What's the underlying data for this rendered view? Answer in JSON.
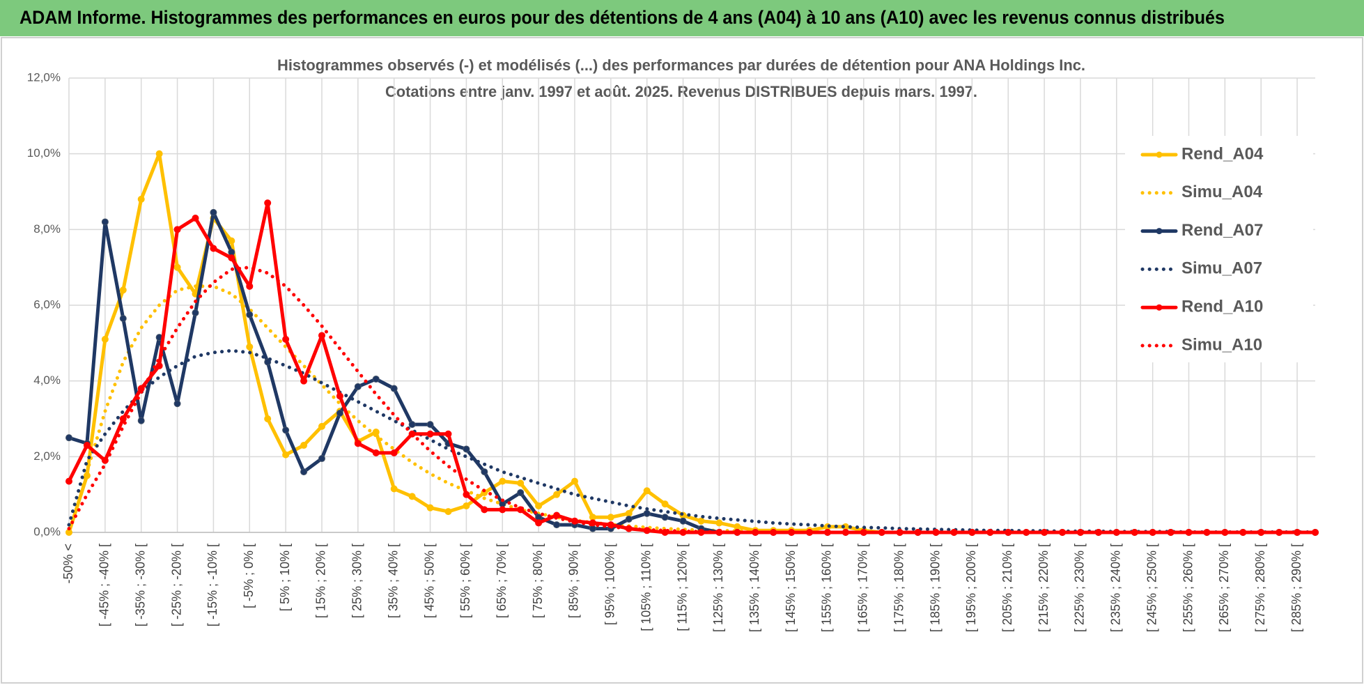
{
  "header": {
    "title": "ADAM Informe. Histogrammes des performances en euros pour des détentions de 4 ans (A04) à 10 ans (A10) avec les revenus connus distribués"
  },
  "chart_data": {
    "type": "line",
    "subtitle": [
      "Histogrammes observés (-) et modélisés (...) des performances par durées de détention pour ANA Holdings Inc.",
      "Cotations entre janv. 1997 et août. 2025. Revenus DISTRIBUES depuis mars. 1997."
    ],
    "categories": [
      "-50% <",
      null,
      "[ -45% ; -40% [",
      null,
      "[ -35% ; -30% [",
      null,
      "[ -25% ; -20% [",
      null,
      "[ -15% ; -10% [",
      null,
      "[ -5% ; 0% [",
      null,
      "[ 5% ; 10% [",
      null,
      "[ 15% ; 20% [",
      null,
      "[ 25% ; 30% [",
      null,
      "[ 35% ; 40% [",
      null,
      "[ 45% ; 50% [",
      null,
      "[ 55% ; 60% [",
      null,
      "[ 65% ; 70% [",
      null,
      "[ 75% ; 80% [",
      null,
      "[ 85% ; 90% [",
      null,
      "[ 95% ; 100% [",
      null,
      "[ 105% ; 110% [",
      null,
      "[ 115% ; 120% [",
      null,
      "[ 125% ; 130% [",
      null,
      "[ 135% ; 140% [",
      null,
      "[ 145% ; 150% [",
      null,
      "[ 155% ; 160% [",
      null,
      "[ 165% ; 170% [",
      null,
      "[ 175% ; 180% [",
      null,
      "[ 185% ; 190% [",
      null,
      "[ 195% ; 200% [",
      null,
      "[ 205% ; 210% [",
      null,
      "[ 215% ; 220% [",
      null,
      "[ 225% ; 230% [",
      null,
      "[ 235% ; 240% [",
      null,
      "[ 245% ; 250% [",
      null,
      "[ 255% ; 260% [",
      null,
      "[ 265% ; 270% [",
      null,
      "[ 275% ; 280% [",
      null,
      "[ 285% ; 290% [",
      null
    ],
    "series": [
      {
        "name": "Rend_A04",
        "color": "#FFC000",
        "line_style": "solid",
        "markers": true,
        "values": [
          0,
          1.5,
          5.1,
          6.4,
          8.8,
          10.0,
          7.0,
          6.3,
          8.3,
          7.7,
          4.9,
          3.0,
          2.05,
          2.3,
          2.8,
          3.2,
          2.4,
          2.65,
          1.15,
          0.95,
          0.65,
          0.55,
          0.7,
          1.05,
          1.35,
          1.3,
          0.7,
          1.0,
          1.35,
          0.4,
          0.4,
          0.5,
          1.1,
          0.75,
          0.45,
          0.3,
          0.25,
          0.15,
          0.05,
          0.05,
          0.05,
          0.05,
          0.15,
          0.15,
          0.05,
          0,
          0,
          0,
          0,
          0,
          0,
          0,
          0,
          0,
          0,
          0,
          0,
          0,
          0,
          0,
          0,
          0,
          0,
          0,
          0,
          0,
          0,
          0,
          0,
          0
        ]
      },
      {
        "name": "Simu_A04",
        "color": "#FFC000",
        "line_style": "dotted",
        "markers": false,
        "values": [
          0,
          1.6,
          3.2,
          4.5,
          5.4,
          6.0,
          6.4,
          6.5,
          6.5,
          6.3,
          5.9,
          5.4,
          4.9,
          4.4,
          3.9,
          3.4,
          2.95,
          2.55,
          2.2,
          1.85,
          1.55,
          1.3,
          1.1,
          0.9,
          0.75,
          0.6,
          0.5,
          0.4,
          0.32,
          0.26,
          0.21,
          0.17,
          0.13,
          0.1,
          0.08,
          0.06,
          0.05,
          0.04,
          0.03,
          0.02,
          0.02,
          0.01,
          0,
          0,
          0,
          0,
          0,
          0,
          0,
          0,
          0,
          0,
          0,
          0,
          0,
          0,
          0,
          0,
          0,
          0,
          0,
          0,
          0,
          0,
          0,
          0,
          0,
          0,
          0,
          0
        ]
      },
      {
        "name": "Rend_A07",
        "color": "#1F3864",
        "line_style": "solid",
        "markers": true,
        "values": [
          2.5,
          2.35,
          8.2,
          5.65,
          2.95,
          5.15,
          3.4,
          5.8,
          8.45,
          7.4,
          5.75,
          4.5,
          2.7,
          1.6,
          1.95,
          3.15,
          3.85,
          4.05,
          3.8,
          2.85,
          2.85,
          2.35,
          2.2,
          1.6,
          0.75,
          1.05,
          0.4,
          0.2,
          0.2,
          0.1,
          0.1,
          0.35,
          0.5,
          0.4,
          0.3,
          0.1,
          0,
          0,
          0,
          0,
          0,
          0,
          0,
          0,
          0,
          0,
          0,
          0,
          0,
          0,
          0,
          0,
          0,
          0,
          0,
          0,
          0,
          0,
          0,
          0,
          0,
          0,
          0,
          0,
          0,
          0,
          0,
          0,
          0,
          0
        ]
      },
      {
        "name": "Simu_A07",
        "color": "#1F3864",
        "line_style": "dotted",
        "markers": false,
        "values": [
          0.2,
          1.9,
          2.6,
          3.2,
          3.7,
          4.1,
          4.4,
          4.65,
          4.75,
          4.8,
          4.75,
          4.6,
          4.4,
          4.2,
          3.95,
          3.7,
          3.45,
          3.2,
          2.95,
          2.7,
          2.45,
          2.2,
          2.0,
          1.8,
          1.6,
          1.45,
          1.3,
          1.15,
          1.0,
          0.9,
          0.8,
          0.7,
          0.62,
          0.55,
          0.48,
          0.42,
          0.37,
          0.33,
          0.29,
          0.25,
          0.22,
          0.2,
          0.17,
          0.15,
          0.13,
          0.12,
          0.1,
          0.09,
          0.08,
          0.07,
          0.06,
          0.05,
          0.05,
          0.04,
          0.04,
          0.03,
          0.03,
          0.03,
          0.02,
          0.02,
          0.02,
          0.02,
          0.01,
          0.01,
          0.01,
          0.01,
          0.01,
          0.01,
          0.01,
          0.01
        ]
      },
      {
        "name": "Rend_A10",
        "color": "#FF0000",
        "line_style": "solid",
        "markers": true,
        "values": [
          1.35,
          2.3,
          1.9,
          3.0,
          3.8,
          4.4,
          8.0,
          8.3,
          7.5,
          7.25,
          6.5,
          8.7,
          5.1,
          4.0,
          5.2,
          3.6,
          2.35,
          2.1,
          2.1,
          2.6,
          2.6,
          2.6,
          1.0,
          0.6,
          0.6,
          0.6,
          0.25,
          0.45,
          0.3,
          0.25,
          0.2,
          0.1,
          0.05,
          0,
          0,
          0,
          0,
          0,
          0,
          0,
          0,
          0,
          0,
          0,
          0,
          0,
          0,
          0,
          0,
          0,
          0,
          0,
          0,
          0,
          0,
          0,
          0,
          0,
          0,
          0,
          0,
          0,
          0,
          0,
          0,
          0,
          0,
          0,
          0,
          0
        ]
      },
      {
        "name": "Simu_A10",
        "color": "#FF0000",
        "line_style": "dotted",
        "markers": false,
        "values": [
          0.1,
          1.0,
          1.8,
          2.8,
          3.7,
          4.6,
          5.4,
          6.1,
          6.6,
          6.95,
          7.0,
          6.85,
          6.5,
          6.0,
          5.45,
          4.85,
          4.25,
          3.65,
          3.1,
          2.6,
          2.15,
          1.75,
          1.4,
          1.1,
          0.85,
          0.65,
          0.5,
          0.38,
          0.28,
          0.2,
          0.15,
          0.1,
          0.07,
          0.05,
          0.03,
          0.02,
          0.01,
          0,
          0,
          0,
          0,
          0,
          0,
          0,
          0,
          0,
          0,
          0,
          0,
          0,
          0,
          0,
          0,
          0,
          0,
          0,
          0,
          0,
          0,
          0,
          0,
          0,
          0,
          0,
          0,
          0,
          0,
          0,
          0,
          0
        ]
      }
    ],
    "ylim": [
      0,
      12
    ],
    "yticks": [
      {
        "value": 0,
        "label": "0,0%"
      },
      {
        "value": 2,
        "label": "2,0%"
      },
      {
        "value": 4,
        "label": "4,0%"
      },
      {
        "value": 6,
        "label": "6,0%"
      },
      {
        "value": 8,
        "label": "8,0%"
      },
      {
        "value": 10,
        "label": "10,0%"
      },
      {
        "value": 12,
        "label": "12,0%"
      }
    ],
    "grid": true,
    "legend": "right"
  }
}
